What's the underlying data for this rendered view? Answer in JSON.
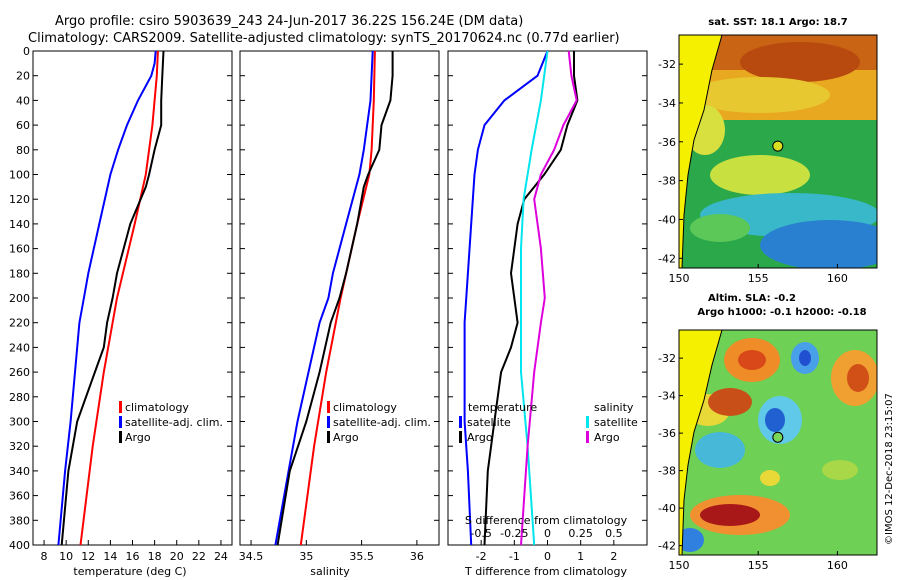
{
  "title_line1": "Argo profile: csiro 5903639_243 24-Jun-2017 36.22S 156.24E (DM data)",
  "title_line2": "Climatology: CARS2009. Satellite-adjusted climatology: synTS_20170624.nc (0.77d earlier)",
  "watermark": "©IMOS 12-Dec-2018 23:15:07",
  "colors": {
    "climatology": "#ff0000",
    "satellite": "#0000ff",
    "argo": "#000000",
    "sat_diff": "#00e5ee",
    "sal_diff": "#dd00dd"
  },
  "depth_axis": {
    "range": [
      0,
      400
    ],
    "ticks": [
      "0",
      "20",
      "40",
      "60",
      "80",
      "100",
      "120",
      "140",
      "160",
      "180",
      "200",
      "220",
      "240",
      "260",
      "280",
      "300",
      "320",
      "340",
      "360",
      "380",
      "400"
    ]
  },
  "chart_data": [
    {
      "type": "line",
      "id": "temperature",
      "xlabel": "temperature (deg C)",
      "ylabel": "depth",
      "xlim": [
        7,
        25
      ],
      "ylim": [
        400,
        0
      ],
      "xticks": [
        "8",
        "10",
        "12",
        "14",
        "16",
        "18",
        "20",
        "22",
        "24"
      ],
      "legend": [
        "climatology",
        "satellite-adj. clim.",
        "Argo"
      ],
      "series": [
        {
          "name": "climatology",
          "color": "#ff0000",
          "depth": [
            0,
            20,
            40,
            60,
            80,
            100,
            140,
            200,
            260,
            320,
            400
          ],
          "values": [
            18.3,
            18.2,
            18.0,
            17.8,
            17.5,
            17.2,
            16.2,
            14.6,
            13.4,
            12.4,
            11.3
          ]
        },
        {
          "name": "satellite-adj. clim.",
          "color": "#0000ff",
          "depth": [
            0,
            10,
            20,
            40,
            60,
            80,
            100,
            140,
            180,
            200,
            220,
            260,
            300,
            340,
            400
          ],
          "values": [
            18.1,
            18.0,
            17.7,
            16.5,
            15.5,
            14.7,
            14.0,
            13.0,
            12.0,
            11.6,
            11.2,
            10.8,
            10.4,
            9.9,
            9.3
          ]
        },
        {
          "name": "Argo",
          "color": "#000000",
          "depth": [
            0,
            20,
            40,
            60,
            80,
            100,
            110,
            140,
            180,
            200,
            220,
            240,
            260,
            300,
            340,
            400
          ],
          "values": [
            18.8,
            18.7,
            18.6,
            18.6,
            18.0,
            17.5,
            17.2,
            15.8,
            14.6,
            14.2,
            13.7,
            13.4,
            12.6,
            11.0,
            10.2,
            9.6
          ]
        }
      ]
    },
    {
      "type": "line",
      "id": "salinity",
      "xlabel": "salinity",
      "ylabel": "depth",
      "xlim": [
        34.4,
        36.2
      ],
      "ylim": [
        400,
        0
      ],
      "xticks": [
        "34.5",
        "35",
        "35.5",
        "36"
      ],
      "legend": [
        "climatology",
        "satellite-adj. clim.",
        "Argo"
      ],
      "series": [
        {
          "name": "climatology",
          "color": "#ff0000",
          "depth": [
            0,
            40,
            80,
            100,
            140,
            200,
            260,
            320,
            400
          ],
          "values": [
            35.62,
            35.61,
            35.59,
            35.57,
            35.46,
            35.31,
            35.18,
            35.07,
            34.95
          ]
        },
        {
          "name": "satellite-adj. clim.",
          "color": "#0000ff",
          "depth": [
            0,
            40,
            80,
            100,
            140,
            180,
            200,
            220,
            260,
            300,
            340,
            400
          ],
          "values": [
            35.6,
            35.58,
            35.52,
            35.48,
            35.36,
            35.24,
            35.2,
            35.12,
            35.02,
            34.92,
            34.84,
            34.72
          ]
        },
        {
          "name": "Argo",
          "color": "#000000",
          "depth": [
            0,
            20,
            40,
            60,
            80,
            100,
            110,
            140,
            180,
            200,
            220,
            260,
            300,
            340,
            400
          ],
          "values": [
            35.78,
            35.78,
            35.76,
            35.68,
            35.66,
            35.56,
            35.52,
            35.46,
            35.36,
            35.3,
            35.22,
            35.12,
            35.0,
            34.85,
            34.74
          ]
        }
      ]
    },
    {
      "type": "line",
      "id": "difference",
      "xlabel": "T difference from climatology",
      "x2label": "S difference from climatology",
      "xlim": [
        -3,
        3
      ],
      "ylim": [
        400,
        0
      ],
      "xticks": [
        "-2",
        "-1",
        "0",
        "1",
        "2"
      ],
      "x2ticks": [
        "-0.5",
        "-0.25",
        "0",
        "0.25",
        "0.5"
      ],
      "legend_temperature_title": "temperature",
      "legend_salinity_title": "salinity",
      "legend": [
        "satellite",
        "Argo",
        "satellite",
        "Argo"
      ],
      "series": [
        {
          "name": "T satellite",
          "color": "#0000ff",
          "depth": [
            0,
            20,
            40,
            60,
            80,
            100,
            140,
            180,
            220,
            260,
            300,
            340,
            400
          ],
          "values": [
            0.0,
            -0.3,
            -1.3,
            -1.9,
            -2.1,
            -2.2,
            -2.3,
            -2.4,
            -2.5,
            -2.5,
            -2.5,
            -2.4,
            -2.3
          ]
        },
        {
          "name": "T Argo",
          "color": "#000000",
          "depth": [
            0,
            20,
            40,
            60,
            80,
            100,
            120,
            140,
            160,
            180,
            200,
            220,
            240,
            260,
            300,
            340,
            400
          ],
          "values": [
            0.8,
            0.8,
            0.9,
            0.6,
            0.4,
            -0.1,
            -0.7,
            -0.9,
            -1.0,
            -1.1,
            -1.0,
            -0.9,
            -1.1,
            -1.4,
            -1.6,
            -1.8,
            -1.9
          ]
        },
        {
          "name": "S satellite",
          "color": "#00e5ee",
          "depth": [
            0,
            40,
            80,
            120,
            160,
            200,
            260,
            320,
            400
          ],
          "values": [
            0.0,
            -0.05,
            -0.12,
            -0.18,
            -0.2,
            -0.2,
            -0.2,
            -0.15,
            -0.1
          ]
        },
        {
          "name": "S Argo",
          "color": "#dd00dd",
          "depth": [
            0,
            20,
            40,
            60,
            80,
            100,
            120,
            160,
            200,
            220,
            260,
            320,
            400
          ],
          "values": [
            0.16,
            0.18,
            0.22,
            0.12,
            0.05,
            -0.05,
            -0.1,
            -0.05,
            -0.02,
            -0.05,
            -0.1,
            -0.15,
            -0.2
          ]
        }
      ]
    },
    {
      "type": "heatmap",
      "id": "sst_map",
      "title": "sat. SST: 18.1 Argo: 18.7",
      "xticks": [
        "150",
        "155",
        "160"
      ],
      "yticks": [
        "-32",
        "-34",
        "-36",
        "-38",
        "-40",
        "-42"
      ],
      "xlim": [
        150,
        162.5
      ],
      "ylim": [
        -42.5,
        -30.5
      ],
      "marker": {
        "lon": 156.24,
        "lat": -36.22
      }
    },
    {
      "type": "heatmap",
      "id": "sla_map",
      "title": "Altim. SLA: -0.2",
      "subtitle": "Argo h1000: -0.1 h2000: -0.18",
      "xticks": [
        "150",
        "155",
        "160"
      ],
      "yticks": [
        "-32",
        "-34",
        "-36",
        "-38",
        "-40",
        "-42"
      ],
      "xlim": [
        150,
        162.5
      ],
      "ylim": [
        -42.5,
        -30.5
      ],
      "marker": {
        "lon": 156.24,
        "lat": -36.22
      }
    }
  ]
}
